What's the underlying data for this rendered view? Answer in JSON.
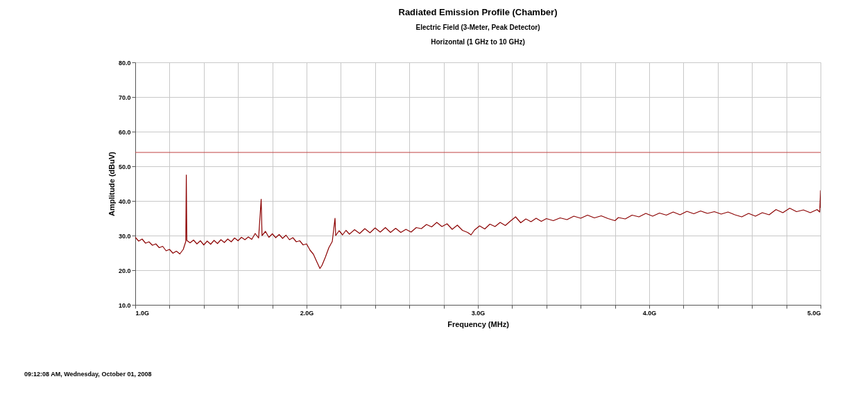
{
  "chart_data": {
    "type": "line",
    "title": "Radiated Emission Profile (Chamber)",
    "subtitle": "Electric Field (3-Meter, Peak Detector)\nHorizontal (1 GHz to 10 GHz)",
    "xlabel": "Frequency (MHz)",
    "ylabel": "Amplitude (dBuV)",
    "annotations": [
      "09:12:08 AM, Wednesday, October 01, 2008"
    ],
    "xlim": [
      1.0,
      5.0
    ],
    "xticks": [
      {
        "value": 1.0,
        "label": "1.0G"
      },
      {
        "value": 1.2,
        "label": null
      },
      {
        "value": 1.4,
        "label": null
      },
      {
        "value": 1.6,
        "label": null
      },
      {
        "value": 1.8,
        "label": null
      },
      {
        "value": 2.0,
        "label": "2.0G"
      },
      {
        "value": 2.2,
        "label": null
      },
      {
        "value": 2.4,
        "label": null
      },
      {
        "value": 2.6,
        "label": null
      },
      {
        "value": 2.8,
        "label": null
      },
      {
        "value": 3.0,
        "label": "3.0G"
      },
      {
        "value": 3.2,
        "label": null
      },
      {
        "value": 3.4,
        "label": null
      },
      {
        "value": 3.6,
        "label": null
      },
      {
        "value": 3.8,
        "label": null
      },
      {
        "value": 4.0,
        "label": "4.0G"
      },
      {
        "value": 4.2,
        "label": null
      },
      {
        "value": 4.4,
        "label": null
      },
      {
        "value": 4.6,
        "label": null
      },
      {
        "value": 4.8,
        "label": null
      },
      {
        "value": 5.0,
        "label": "5.0G"
      }
    ],
    "ylim": [
      10,
      80
    ],
    "yticks": [
      {
        "value": 10,
        "label": "10.0"
      },
      {
        "value": 20,
        "label": "20.0"
      },
      {
        "value": 30,
        "label": "30.0"
      },
      {
        "value": 40,
        "label": "40.0"
      },
      {
        "value": 50,
        "label": "50.0"
      },
      {
        "value": 60,
        "label": "60.0"
      },
      {
        "value": 70,
        "label": "70.0"
      },
      {
        "value": 80,
        "label": "80.0"
      }
    ],
    "grid": true,
    "marker": "none",
    "line_style": "solid",
    "ref_lines": [
      {
        "axis": "y",
        "value": 54,
        "color": "#c04040",
        "line_style": "solid"
      }
    ],
    "series": [
      {
        "color": "#8b0000",
        "x": [
          1.0,
          1.02,
          1.04,
          1.06,
          1.08,
          1.1,
          1.12,
          1.14,
          1.16,
          1.18,
          1.2,
          1.22,
          1.24,
          1.26,
          1.28,
          1.295,
          1.298,
          1.301,
          1.32,
          1.34,
          1.36,
          1.38,
          1.4,
          1.42,
          1.44,
          1.46,
          1.48,
          1.5,
          1.52,
          1.54,
          1.56,
          1.58,
          1.6,
          1.62,
          1.64,
          1.66,
          1.68,
          1.7,
          1.72,
          1.735,
          1.74,
          1.76,
          1.78,
          1.8,
          1.82,
          1.84,
          1.86,
          1.88,
          1.9,
          1.92,
          1.94,
          1.96,
          1.98,
          2.0,
          2.02,
          2.04,
          2.06,
          2.078,
          2.09,
          2.11,
          2.13,
          2.15,
          2.166,
          2.17,
          2.19,
          2.21,
          2.23,
          2.25,
          2.28,
          2.31,
          2.34,
          2.37,
          2.4,
          2.43,
          2.46,
          2.49,
          2.52,
          2.55,
          2.58,
          2.61,
          2.64,
          2.67,
          2.7,
          2.73,
          2.76,
          2.79,
          2.82,
          2.85,
          2.88,
          2.91,
          2.94,
          2.96,
          2.98,
          3.01,
          3.04,
          3.07,
          3.1,
          3.13,
          3.16,
          3.19,
          3.22,
          3.25,
          3.28,
          3.31,
          3.34,
          3.37,
          3.4,
          3.44,
          3.48,
          3.52,
          3.56,
          3.6,
          3.64,
          3.68,
          3.72,
          3.76,
          3.8,
          3.82,
          3.86,
          3.9,
          3.94,
          3.98,
          4.02,
          4.06,
          4.1,
          4.14,
          4.18,
          4.22,
          4.26,
          4.3,
          4.34,
          4.38,
          4.42,
          4.46,
          4.5,
          4.54,
          4.58,
          4.62,
          4.66,
          4.7,
          4.74,
          4.78,
          4.82,
          4.86,
          4.9,
          4.94,
          4.98,
          4.995,
          5.0,
          5.0
        ],
        "values": [
          29.5,
          28.4,
          29.0,
          27.8,
          28.2,
          27.2,
          27.6,
          26.5,
          26.9,
          25.6,
          26.0,
          24.9,
          25.5,
          24.7,
          26.0,
          28.3,
          47.5,
          28.6,
          27.9,
          28.7,
          27.6,
          28.5,
          27.3,
          28.4,
          27.5,
          28.6,
          27.7,
          28.8,
          28.0,
          29.0,
          28.2,
          29.3,
          28.5,
          29.5,
          28.8,
          29.6,
          28.9,
          30.6,
          29.3,
          40.5,
          30.0,
          31.2,
          29.5,
          30.5,
          29.4,
          30.3,
          29.2,
          30.1,
          28.8,
          29.4,
          28.2,
          28.5,
          27.3,
          27.6,
          25.8,
          24.6,
          22.4,
          20.5,
          21.4,
          23.8,
          26.5,
          28.3,
          35.0,
          30.0,
          31.4,
          30.2,
          31.5,
          30.4,
          31.7,
          30.6,
          32.0,
          30.8,
          32.2,
          31.0,
          32.3,
          30.9,
          32.1,
          30.9,
          31.8,
          31.0,
          32.3,
          32.0,
          33.2,
          32.5,
          33.8,
          32.6,
          33.4,
          31.8,
          33.0,
          31.5,
          30.9,
          30.2,
          31.6,
          32.8,
          31.9,
          33.3,
          32.6,
          33.8,
          32.9,
          34.2,
          35.4,
          33.7,
          34.8,
          34.0,
          35.0,
          34.1,
          34.9,
          34.3,
          35.1,
          34.6,
          35.6,
          35.0,
          35.9,
          35.1,
          35.7,
          34.9,
          34.3,
          35.2,
          34.8,
          35.9,
          35.4,
          36.4,
          35.6,
          36.5,
          35.9,
          36.8,
          36.0,
          37.0,
          36.3,
          37.1,
          36.4,
          36.9,
          36.2,
          36.8,
          36.0,
          35.4,
          36.4,
          35.6,
          36.6,
          36.0,
          37.5,
          36.6,
          37.9,
          36.9,
          37.4,
          36.6,
          37.5,
          36.8,
          43.0,
          38.0
        ]
      }
    ]
  }
}
